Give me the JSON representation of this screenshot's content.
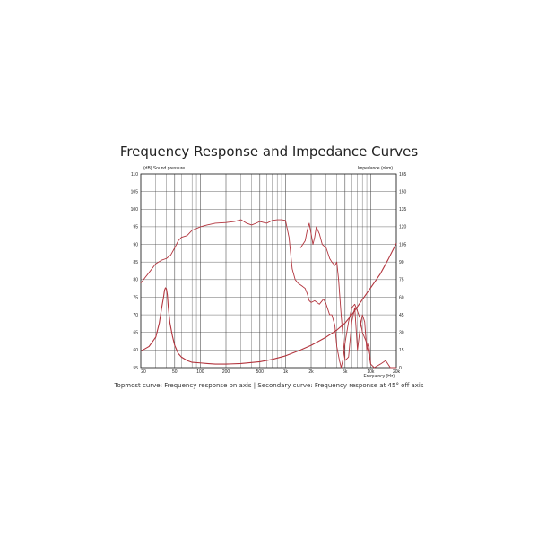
{
  "title": "Frequency Response and Impedance Curves",
  "caption": "Topmost curve: Frequency response on axis | Secondary curve: Frequency response at 45° off axis",
  "chart_data": {
    "type": "line",
    "title": "Frequency Response and Impedance Curves",
    "ylabel_left": "(dB) Sound pressure",
    "ylabel_right": "Impedance  (ohm)",
    "xlabel": "Frequency  (Hz)",
    "xscale": "log",
    "xlim": [
      20,
      20000
    ],
    "ylim_left": [
      55,
      110
    ],
    "ylim_right": [
      0,
      165
    ],
    "grid": true,
    "x_ticks": [
      {
        "v": 20,
        "label": ""
      },
      {
        "v": 50,
        "label": "50"
      },
      {
        "v": 100,
        "label": "100"
      },
      {
        "v": 200,
        "label": "200"
      },
      {
        "v": 500,
        "label": "500"
      },
      {
        "v": 1000,
        "label": "1k"
      },
      {
        "v": 2000,
        "label": "2k"
      },
      {
        "v": 5000,
        "label": "5k"
      },
      {
        "v": 10000,
        "label": "10k"
      },
      {
        "v": 20000,
        "label": "20k"
      }
    ],
    "x_first_label": "20",
    "y_left_ticks": [
      110,
      105,
      100,
      95,
      90,
      85,
      80,
      75,
      70,
      65,
      60,
      55
    ],
    "y_right_ticks": [
      165,
      150,
      135,
      120,
      105,
      90,
      75,
      60,
      45,
      30,
      15,
      0
    ],
    "series": [
      {
        "axis": "left",
        "x": [
          20,
          25,
          30,
          35,
          40,
          45,
          50,
          55,
          60,
          70,
          80,
          90,
          100,
          120,
          150,
          200,
          250,
          300,
          350,
          400,
          450,
          500,
          600,
          700,
          800,
          900,
          1000,
          1100,
          1200,
          1300,
          1400,
          1500,
          1600,
          1700,
          1800,
          1900,
          2000,
          2200,
          2500,
          2800,
          3000,
          3300,
          3500,
          3800,
          4000,
          4300,
          4500,
          4700,
          5000,
          5500,
          6000,
          6500,
          7000,
          7500,
          8000,
          9000,
          10000,
          11000,
          12000,
          13000,
          15000,
          17000,
          20000
        ],
        "y": [
          79,
          82,
          84.5,
          85.5,
          86,
          87,
          89,
          91,
          92,
          92.5,
          94,
          94.5,
          95,
          95.5,
          96,
          96.2,
          96.5,
          97,
          96,
          95.5,
          96,
          96.5,
          96,
          96.8,
          97,
          97,
          96.8,
          92,
          83,
          80,
          79,
          78.5,
          78,
          77.5,
          76,
          74,
          73.5,
          74,
          73,
          74.5,
          73,
          70,
          70,
          67,
          61,
          57,
          55,
          57,
          62,
          68,
          72,
          73,
          71,
          69,
          65,
          62,
          56,
          55,
          55.5,
          56,
          57,
          55,
          55
        ]
      },
      {
        "axis": "left",
        "x": [
          1500,
          1700,
          1800,
          1900,
          2000,
          2100,
          2200,
          2300,
          2500,
          2700,
          3000,
          3300,
          3500,
          3800,
          4000,
          4200,
          4500,
          5000,
          5500,
          6000,
          6500,
          7000,
          7500,
          8000,
          8500,
          9000,
          9500,
          10000
        ],
        "y": [
          89,
          91,
          94,
          96,
          93,
          90,
          92,
          95,
          93,
          90,
          89,
          86,
          85,
          84,
          85,
          80,
          70,
          57,
          58,
          68,
          72,
          60,
          66,
          70,
          68,
          60,
          62,
          56
        ]
      },
      {
        "axis": "right",
        "x": [
          20,
          25,
          30,
          33,
          35,
          37,
          38,
          39,
          40,
          41,
          42,
          44,
          47,
          50,
          55,
          60,
          70,
          80,
          100,
          120,
          150,
          200,
          300,
          500,
          700,
          1000,
          1500,
          2000,
          3000,
          4000,
          5000,
          6000,
          7000,
          8000,
          10000,
          13000,
          16000,
          20000
        ],
        "y": [
          14,
          18,
          26,
          38,
          50,
          60,
          66,
          68,
          67,
          62,
          52,
          38,
          27,
          19,
          12,
          9,
          6,
          4.5,
          4,
          3.5,
          3,
          3,
          3.5,
          5,
          7,
          10,
          15,
          19,
          26,
          32,
          38,
          45,
          52,
          58,
          68,
          80,
          92,
          106
        ]
      }
    ]
  }
}
